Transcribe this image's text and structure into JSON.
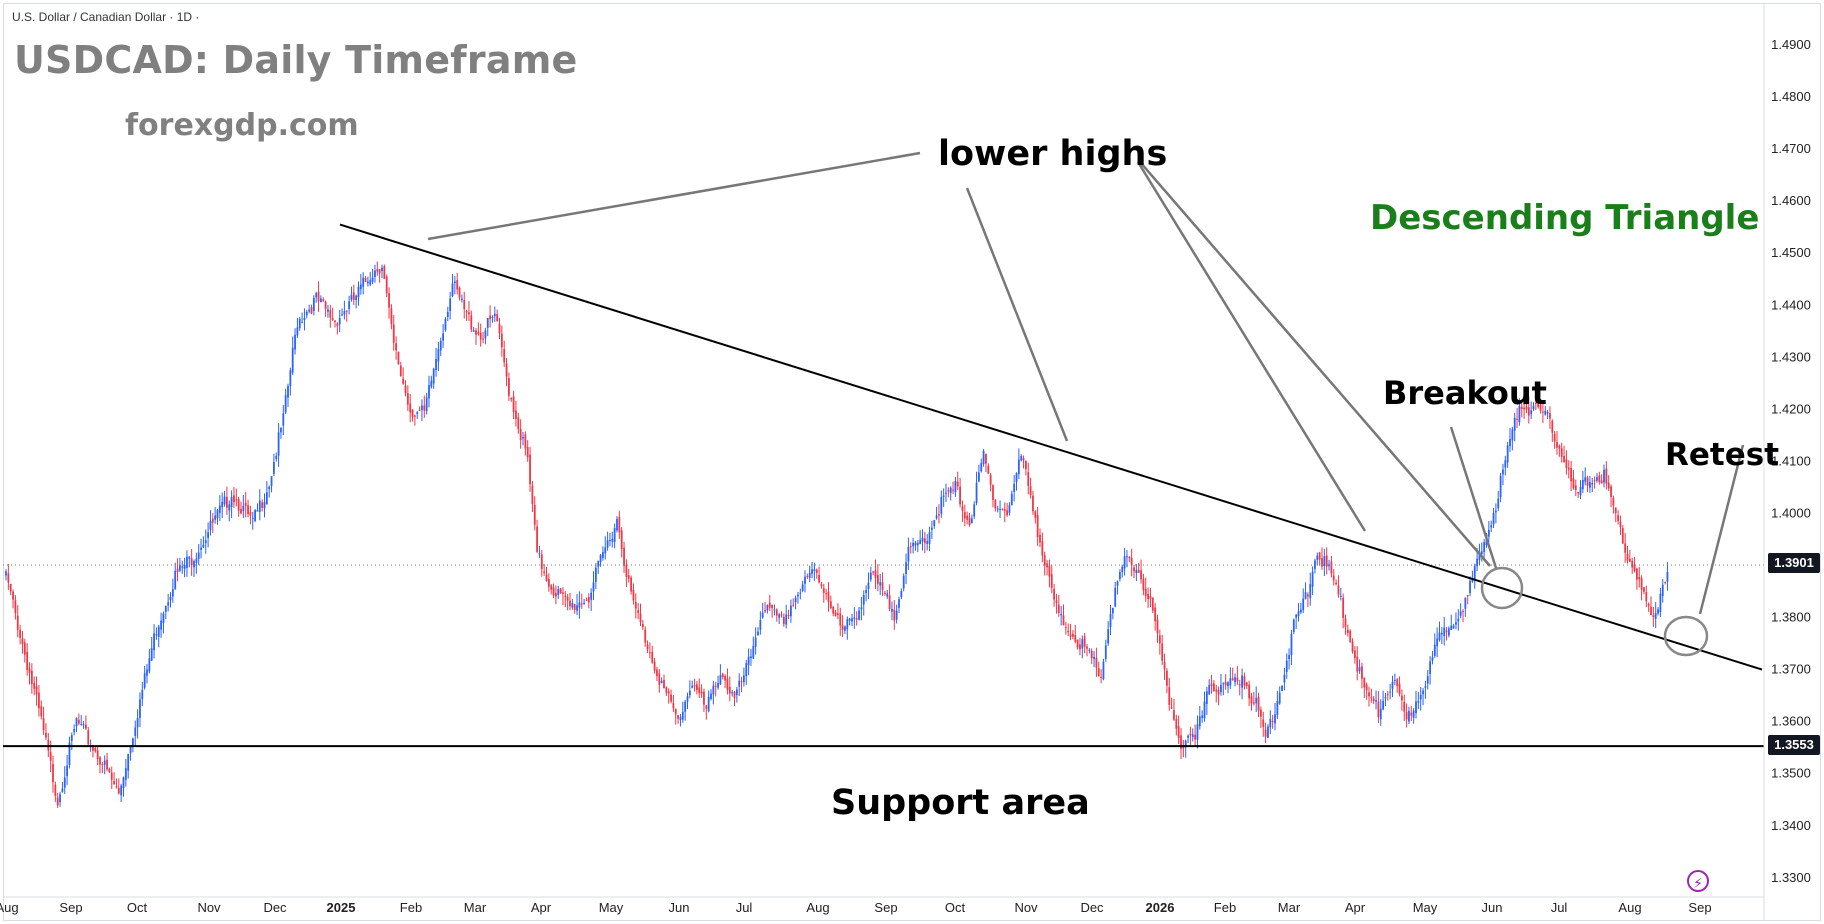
{
  "header": {
    "symbol_title": "U.S. Dollar / Canadian Dollar · 1D ·",
    "main_title": "USDCAD: Daily Timeframe",
    "site": "forexgdp.com"
  },
  "annotations": {
    "lower_highs": "lower highs",
    "descending_triangle": "Descending Triangle",
    "breakout": "Breakout",
    "retest": "Retest",
    "support_area": "Support area"
  },
  "price_tags": {
    "last": "1.3901",
    "support": "1.3553"
  },
  "icons": {
    "bottom_right": "lightning-bolt-icon"
  },
  "colors": {
    "up": "#2962ff",
    "down": "#f23645",
    "trend": "#000000",
    "triangle_text": "#1a7f1a"
  },
  "chart_data": {
    "type": "candlestick",
    "symbol": "USDCAD",
    "timeframe": "1D",
    "y_ticks": [
      "1.4900",
      "1.4800",
      "1.4700",
      "1.4600",
      "1.4500",
      "1.4400",
      "1.4300",
      "1.4200",
      "1.4100",
      "1.4000",
      "1.3900",
      "1.3800",
      "1.3700",
      "1.3600",
      "1.3500",
      "1.3400",
      "1.3300"
    ],
    "ylim": [
      1.33,
      1.49
    ],
    "x_ticks": [
      "Aug",
      "Sep",
      "Oct",
      "Nov",
      "Dec",
      "2025",
      "Feb",
      "Mar",
      "Apr",
      "May",
      "Jun",
      "Jul",
      "Aug",
      "Sep",
      "Oct",
      "Nov",
      "Dec",
      "2026",
      "Feb",
      "Mar",
      "Apr",
      "May",
      "Jun",
      "Jul",
      "Aug",
      "Sep"
    ],
    "x_ticks_bold": [
      "2025",
      "2026"
    ],
    "last_price": 1.3901,
    "support_level": 1.3553,
    "descending_trendline": {
      "start_price": 1.4555,
      "end_price": 1.37
    },
    "anchors": [
      {
        "t": 0,
        "p": 1.388
      },
      {
        "t": 7,
        "p": 1.375
      },
      {
        "t": 15,
        "p": 1.36
      },
      {
        "t": 22,
        "p": 1.345
      },
      {
        "t": 30,
        "p": 1.36
      },
      {
        "t": 40,
        "p": 1.353
      },
      {
        "t": 48,
        "p": 1.346
      },
      {
        "t": 56,
        "p": 1.362
      },
      {
        "t": 64,
        "p": 1.378
      },
      {
        "t": 72,
        "p": 1.388
      },
      {
        "t": 80,
        "p": 1.392
      },
      {
        "t": 88,
        "p": 1.398
      },
      {
        "t": 96,
        "p": 1.404
      },
      {
        "t": 105,
        "p": 1.398
      },
      {
        "t": 112,
        "p": 1.406
      },
      {
        "t": 118,
        "p": 1.418
      },
      {
        "t": 124,
        "p": 1.437
      },
      {
        "t": 132,
        "p": 1.441
      },
      {
        "t": 140,
        "p": 1.437
      },
      {
        "t": 148,
        "p": 1.441
      },
      {
        "t": 155,
        "p": 1.446
      },
      {
        "t": 160,
        "p": 1.448
      },
      {
        "t": 165,
        "p": 1.432
      },
      {
        "t": 172,
        "p": 1.42
      },
      {
        "t": 178,
        "p": 1.419
      },
      {
        "t": 184,
        "p": 1.432
      },
      {
        "t": 190,
        "p": 1.444
      },
      {
        "t": 196,
        "p": 1.438
      },
      {
        "t": 202,
        "p": 1.434
      },
      {
        "t": 208,
        "p": 1.438
      },
      {
        "t": 214,
        "p": 1.424
      },
      {
        "t": 222,
        "p": 1.41
      },
      {
        "t": 226,
        "p": 1.392
      },
      {
        "t": 232,
        "p": 1.386
      },
      {
        "t": 240,
        "p": 1.382
      },
      {
        "t": 248,
        "p": 1.384
      },
      {
        "t": 254,
        "p": 1.392
      },
      {
        "t": 260,
        "p": 1.399
      },
      {
        "t": 266,
        "p": 1.384
      },
      {
        "t": 272,
        "p": 1.376
      },
      {
        "t": 280,
        "p": 1.366
      },
      {
        "t": 286,
        "p": 1.36
      },
      {
        "t": 292,
        "p": 1.368
      },
      {
        "t": 298,
        "p": 1.362
      },
      {
        "t": 304,
        "p": 1.37
      },
      {
        "t": 310,
        "p": 1.364
      },
      {
        "t": 316,
        "p": 1.371
      },
      {
        "t": 322,
        "p": 1.382
      },
      {
        "t": 330,
        "p": 1.379
      },
      {
        "t": 336,
        "p": 1.384
      },
      {
        "t": 344,
        "p": 1.389
      },
      {
        "t": 350,
        "p": 1.384
      },
      {
        "t": 356,
        "p": 1.377
      },
      {
        "t": 362,
        "p": 1.381
      },
      {
        "t": 368,
        "p": 1.388
      },
      {
        "t": 374,
        "p": 1.384
      },
      {
        "t": 378,
        "p": 1.381
      },
      {
        "t": 384,
        "p": 1.392
      },
      {
        "t": 392,
        "p": 1.396
      },
      {
        "t": 398,
        "p": 1.402
      },
      {
        "t": 404,
        "p": 1.405
      },
      {
        "t": 410,
        "p": 1.398
      },
      {
        "t": 416,
        "p": 1.411
      },
      {
        "t": 420,
        "p": 1.403
      },
      {
        "t": 426,
        "p": 1.4
      },
      {
        "t": 432,
        "p": 1.411
      },
      {
        "t": 436,
        "p": 1.404
      },
      {
        "t": 442,
        "p": 1.39
      },
      {
        "t": 448,
        "p": 1.38
      },
      {
        "t": 454,
        "p": 1.377
      },
      {
        "t": 460,
        "p": 1.373
      },
      {
        "t": 466,
        "p": 1.369
      },
      {
        "t": 470,
        "p": 1.381
      },
      {
        "t": 476,
        "p": 1.391
      },
      {
        "t": 482,
        "p": 1.389
      },
      {
        "t": 488,
        "p": 1.381
      },
      {
        "t": 494,
        "p": 1.366
      },
      {
        "t": 500,
        "p": 1.356
      },
      {
        "t": 506,
        "p": 1.356
      },
      {
        "t": 512,
        "p": 1.368
      },
      {
        "t": 518,
        "p": 1.366
      },
      {
        "t": 526,
        "p": 1.369
      },
      {
        "t": 532,
        "p": 1.363
      },
      {
        "t": 536,
        "p": 1.357
      },
      {
        "t": 542,
        "p": 1.366
      },
      {
        "t": 548,
        "p": 1.378
      },
      {
        "t": 554,
        "p": 1.385
      },
      {
        "t": 558,
        "p": 1.393
      },
      {
        "t": 566,
        "p": 1.386
      },
      {
        "t": 572,
        "p": 1.376
      },
      {
        "t": 578,
        "p": 1.366
      },
      {
        "t": 584,
        "p": 1.362
      },
      {
        "t": 590,
        "p": 1.368
      },
      {
        "t": 596,
        "p": 1.36
      },
      {
        "t": 604,
        "p": 1.368
      },
      {
        "t": 610,
        "p": 1.376
      },
      {
        "t": 616,
        "p": 1.38
      },
      {
        "t": 622,
        "p": 1.384
      },
      {
        "t": 628,
        "p": 1.393
      },
      {
        "t": 634,
        "p": 1.402
      },
      {
        "t": 638,
        "p": 1.41
      },
      {
        "t": 644,
        "p": 1.421
      },
      {
        "t": 650,
        "p": 1.42
      },
      {
        "t": 656,
        "p": 1.418
      },
      {
        "t": 662,
        "p": 1.412
      },
      {
        "t": 668,
        "p": 1.403
      },
      {
        "t": 674,
        "p": 1.407
      },
      {
        "t": 680,
        "p": 1.407
      },
      {
        "t": 686,
        "p": 1.398
      },
      {
        "t": 690,
        "p": 1.392
      },
      {
        "t": 694,
        "p": 1.388
      },
      {
        "t": 698,
        "p": 1.382
      },
      {
        "t": 701,
        "p": 1.379
      },
      {
        "t": 704,
        "p": 1.385
      },
      {
        "t": 707,
        "p": 1.389
      }
    ]
  }
}
